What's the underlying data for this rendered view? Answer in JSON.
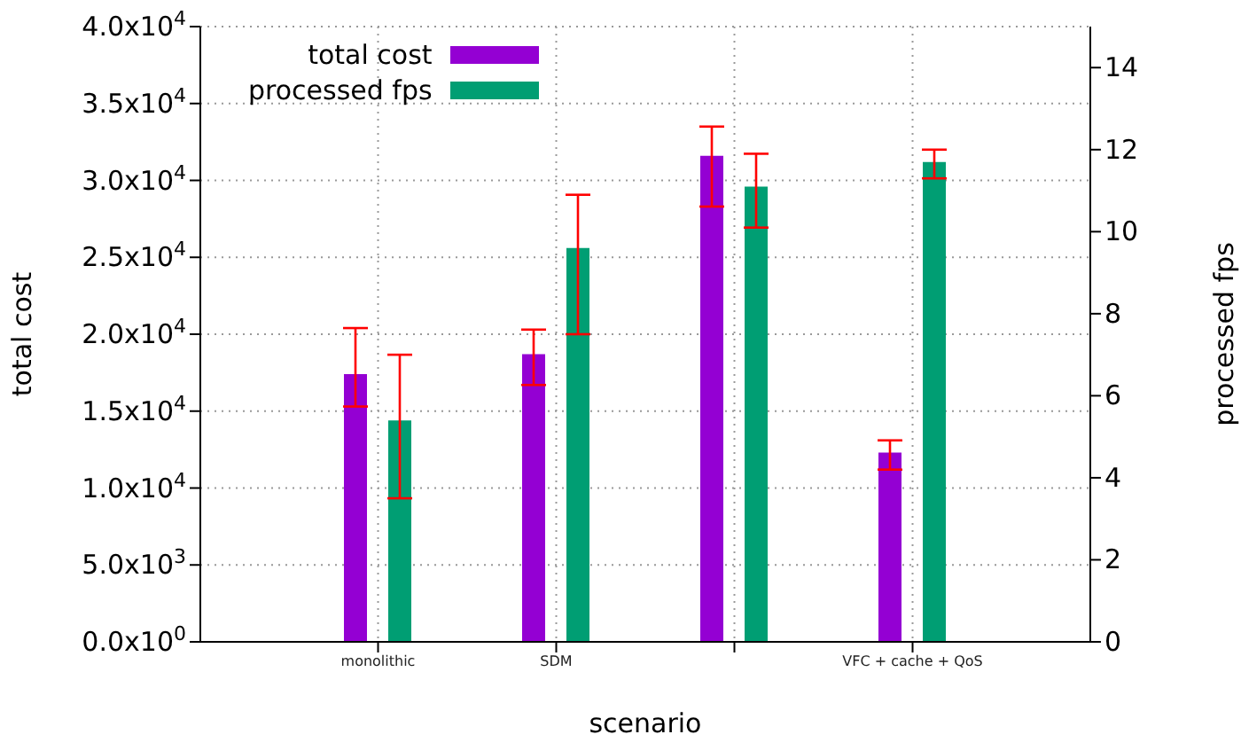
{
  "chart_data": {
    "type": "bar",
    "xlabel": "scenario",
    "ylabel": "total cost",
    "y2label": "processed fps",
    "categories": [
      "monolithic",
      "SDM",
      null,
      "VFC + cache + QoS"
    ],
    "series": [
      {
        "name": "total cost",
        "color": "#9400d3",
        "values": [
          17400,
          18700,
          31600,
          12300
        ],
        "errors": [
          [
            15300,
            20400
          ],
          [
            16700,
            20300
          ],
          [
            28300,
            33500
          ],
          [
            11200,
            13100
          ]
        ]
      },
      {
        "name": "processed fps",
        "color": "#009e73",
        "axis": "y2",
        "values": [
          5.4,
          9.6,
          11.1,
          11.7
        ],
        "errors": [
          [
            3.5,
            7.0
          ],
          [
            7.5,
            10.9
          ],
          [
            10.1,
            11.9
          ],
          [
            11.3,
            12.0
          ]
        ]
      }
    ],
    "ylim": [
      0,
      40000
    ],
    "yticks": [
      {
        "value": 0,
        "label": "0.0x10$^{0}$"
      },
      {
        "value": 5000,
        "label": "5.0x10$^{3}$"
      },
      {
        "value": 10000,
        "label": "1.0x10$^{4}$"
      },
      {
        "value": 15000,
        "label": "1.5x10$^{4}$"
      },
      {
        "value": 20000,
        "label": "2.0x10$^{4}$"
      },
      {
        "value": 25000,
        "label": "2.5x10$^{4}$"
      },
      {
        "value": 30000,
        "label": "3.0x10$^{4}$"
      },
      {
        "value": 35000,
        "label": "3.5x10$^{4}$"
      },
      {
        "value": 40000,
        "label": "4.0x10$^{4}$"
      }
    ],
    "y2lim": [
      0,
      15
    ],
    "y2ticks": [
      0,
      2,
      4,
      6,
      8,
      10,
      12,
      14
    ],
    "grid": true,
    "legend": "top left"
  }
}
